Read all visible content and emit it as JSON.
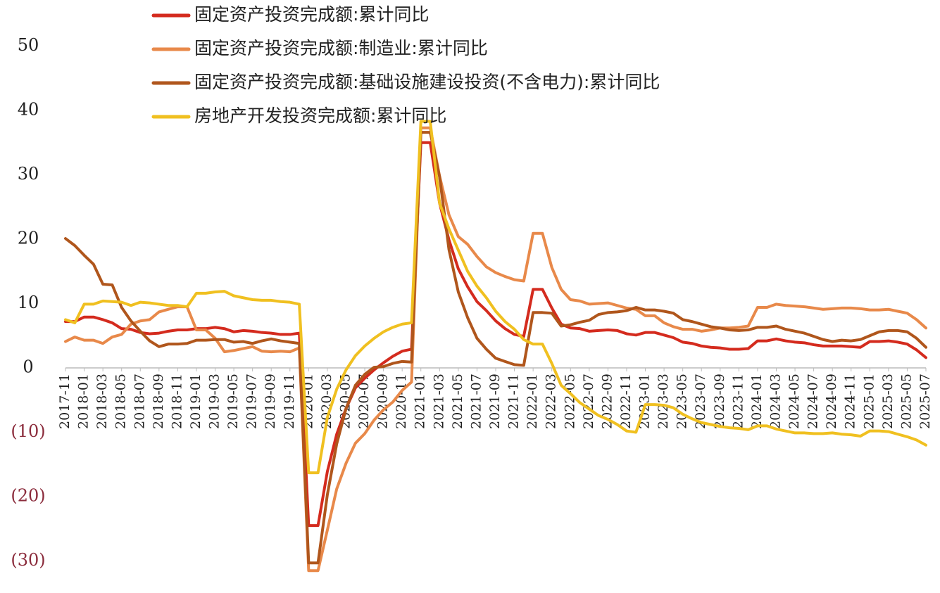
{
  "chart_data": {
    "type": "line",
    "categories": [
      "2017-11",
      null,
      "2018-01",
      null,
      "2018-03",
      null,
      "2018-05",
      null,
      "2018-07",
      null,
      "2018-09",
      null,
      "2018-11",
      null,
      "2019-01",
      null,
      "2019-03",
      null,
      "2019-05",
      null,
      "2019-07",
      null,
      "2019-09",
      null,
      "2019-11",
      null,
      "2020-01",
      null,
      "2020-03",
      null,
      "2020-05",
      null,
      "2020-07",
      null,
      "2020-09",
      null,
      "2020-11",
      null,
      "2021-01",
      null,
      "2021-03",
      null,
      "2021-05",
      null,
      "2021-07",
      null,
      "2021-09",
      null,
      "2021-11",
      null,
      "2022-01",
      null,
      "2022-03",
      null,
      "2022-05",
      null,
      "2022-07",
      null,
      "2022-09",
      null,
      "2022-11",
      null,
      "2023-01",
      null,
      "2023-03",
      null,
      "2023-05",
      null,
      "2023-07",
      null,
      "2023-09",
      null,
      "2023-11",
      null,
      "2024-01",
      null,
      "2024-03",
      null,
      "2024-05",
      null,
      "2024-07",
      null,
      "2024-09",
      null,
      "2024-11",
      null,
      "2025-01",
      null,
      "2025-03",
      null,
      "2025-05",
      null,
      "2025-07"
    ],
    "series": [
      {
        "name": "固定资产投资完成额:累计同比",
        "color": "#d42b1e",
        "values": [
          7.2,
          7.2,
          7.9,
          7.9,
          7.5,
          7.0,
          6.1,
          6.0,
          5.5,
          5.3,
          5.4,
          5.7,
          5.9,
          5.9,
          6.1,
          6.1,
          6.3,
          6.1,
          5.6,
          5.8,
          5.7,
          5.5,
          5.4,
          5.2,
          5.2,
          5.4,
          -24.5,
          -24.5,
          -16.1,
          -10.3,
          -6.3,
          -3.1,
          -1.6,
          -0.3,
          0.8,
          1.8,
          2.6,
          2.9,
          35.0,
          35.0,
          25.6,
          19.9,
          15.4,
          12.6,
          10.3,
          8.9,
          7.3,
          6.1,
          5.2,
          4.9,
          12.2,
          12.2,
          9.3,
          6.8,
          6.2,
          6.1,
          5.7,
          5.8,
          5.9,
          5.8,
          5.3,
          5.1,
          5.5,
          5.5,
          5.1,
          4.7,
          4.0,
          3.8,
          3.4,
          3.2,
          3.1,
          2.9,
          2.9,
          3.0,
          4.2,
          4.2,
          4.5,
          4.2,
          4.0,
          3.9,
          3.6,
          3.4,
          3.4,
          3.4,
          3.3,
          3.2,
          4.1,
          4.1,
          4.2,
          4.0,
          3.7,
          2.8,
          1.6
        ]
      },
      {
        "name": "固定资产投资完成额:制造业:累计同比",
        "color": "#e8894a",
        "values": [
          4.1,
          4.8,
          4.3,
          4.3,
          3.8,
          4.8,
          5.2,
          6.8,
          7.3,
          7.5,
          8.7,
          9.1,
          9.5,
          9.5,
          5.9,
          5.9,
          4.6,
          2.5,
          2.7,
          3.0,
          3.3,
          2.6,
          2.5,
          2.6,
          2.5,
          3.1,
          -31.5,
          -31.5,
          -25.2,
          -18.8,
          -14.8,
          -11.7,
          -10.2,
          -8.1,
          -6.5,
          -5.3,
          -3.5,
          -2.2,
          37.3,
          37.3,
          29.8,
          23.8,
          20.4,
          19.2,
          17.3,
          15.7,
          14.8,
          14.2,
          13.7,
          13.5,
          20.9,
          20.9,
          15.6,
          12.2,
          10.6,
          10.4,
          9.9,
          10.0,
          10.1,
          9.7,
          9.3,
          9.1,
          8.1,
          8.1,
          7.0,
          6.4,
          6.0,
          6.0,
          5.7,
          5.9,
          6.2,
          6.2,
          6.3,
          6.5,
          9.4,
          9.4,
          9.9,
          9.7,
          9.6,
          9.5,
          9.3,
          9.1,
          9.2,
          9.3,
          9.3,
          9.2,
          9.0,
          9.0,
          9.1,
          8.8,
          8.5,
          7.5,
          6.2
        ]
      },
      {
        "name": "固定资产投资完成额:基础设施建设投资(不含电力):累计同比",
        "color": "#b0561c",
        "values": [
          20.1,
          19.0,
          17.5,
          16.1,
          13.0,
          12.9,
          9.4,
          7.3,
          5.7,
          4.2,
          3.3,
          3.7,
          3.7,
          3.8,
          4.3,
          4.3,
          4.4,
          4.4,
          4.0,
          4.1,
          3.8,
          4.2,
          4.5,
          4.2,
          4.0,
          3.8,
          -30.3,
          -30.3,
          -19.7,
          -11.8,
          -6.3,
          -2.7,
          -1.0,
          0.1,
          0.2,
          0.7,
          1.0,
          0.9,
          36.6,
          36.6,
          29.7,
          18.4,
          11.8,
          7.8,
          4.6,
          2.9,
          1.5,
          1.0,
          0.5,
          0.4,
          8.6,
          8.6,
          8.5,
          6.5,
          6.7,
          7.1,
          7.4,
          8.3,
          8.6,
          8.7,
          8.9,
          9.4,
          9.0,
          9.0,
          8.8,
          8.5,
          7.5,
          7.2,
          6.8,
          6.4,
          6.2,
          5.9,
          5.8,
          5.9,
          6.3,
          6.3,
          6.5,
          6.0,
          5.7,
          5.4,
          4.9,
          4.4,
          4.1,
          4.3,
          4.2,
          4.4,
          5.0,
          5.6,
          5.8,
          5.8,
          5.6,
          4.6,
          3.2
        ]
      },
      {
        "name": "房地产开发投资完成额:累计同比",
        "color": "#f0c020",
        "values": [
          7.5,
          7.0,
          9.9,
          9.9,
          10.4,
          10.3,
          10.2,
          9.7,
          10.2,
          10.1,
          9.9,
          9.7,
          9.7,
          9.5,
          11.6,
          11.6,
          11.8,
          11.9,
          11.2,
          10.9,
          10.6,
          10.5,
          10.5,
          10.3,
          10.2,
          9.9,
          -16.3,
          -16.3,
          -7.7,
          -3.3,
          -0.3,
          1.9,
          3.4,
          4.6,
          5.6,
          6.3,
          6.8,
          7.0,
          38.3,
          38.3,
          25.6,
          21.6,
          18.3,
          15.0,
          12.7,
          10.9,
          8.8,
          7.2,
          6.0,
          4.4,
          3.7,
          3.7,
          0.7,
          -2.7,
          -4.0,
          -5.4,
          -6.4,
          -7.4,
          -8.0,
          -8.8,
          -9.8,
          -10.0,
          -5.7,
          -5.7,
          -5.8,
          -6.2,
          -7.2,
          -7.9,
          -8.5,
          -8.8,
          -9.1,
          -9.3,
          -9.4,
          -9.6,
          -9.0,
          -9.0,
          -9.5,
          -9.8,
          -10.1,
          -10.1,
          -10.2,
          -10.2,
          -10.1,
          -10.3,
          -10.4,
          -10.6,
          -9.8,
          -9.8,
          -9.9,
          -10.3,
          -10.7,
          -11.2,
          -12.0
        ]
      }
    ],
    "ylim": [
      -30,
      50
    ],
    "yticks": [
      {
        "value": -30,
        "label": "(30)"
      },
      {
        "value": -20,
        "label": "(20)"
      },
      {
        "value": -10,
        "label": "(10)"
      },
      0,
      10,
      20,
      30,
      40,
      50
    ],
    "grid": false
  }
}
